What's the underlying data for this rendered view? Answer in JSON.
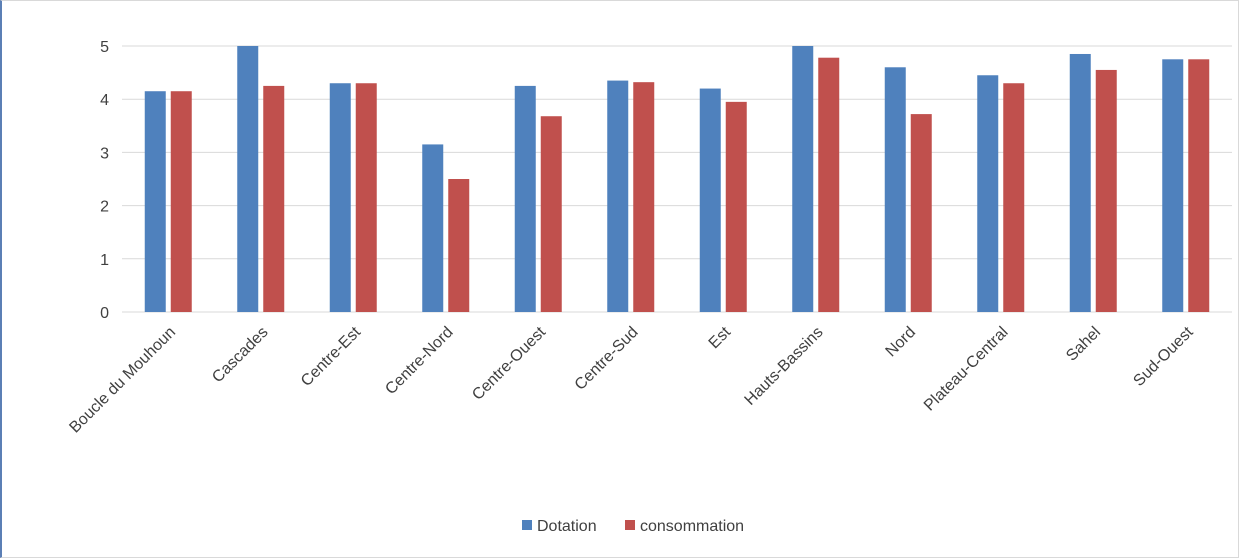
{
  "chart_data": {
    "type": "bar",
    "categories": [
      "Boucle du Mouhoun",
      "Cascades",
      "Centre-Est",
      "Centre-Nord",
      "Centre-Ouest",
      "Centre-Sud",
      "Est",
      "Hauts-Bassins",
      "Nord",
      "Plateau-Central",
      "Sahel",
      "Sud-Ouest"
    ],
    "series": [
      {
        "name": "Dotation",
        "color": "#4f81bd",
        "values": [
          4.15,
          5.0,
          4.3,
          3.15,
          4.25,
          4.35,
          4.2,
          5.0,
          4.6,
          4.45,
          4.85,
          4.75
        ]
      },
      {
        "name": "consommation",
        "color": "#c0504d",
        "values": [
          4.15,
          4.25,
          4.3,
          2.5,
          3.68,
          4.32,
          3.95,
          4.78,
          3.72,
          4.3,
          4.55,
          4.75
        ]
      }
    ],
    "ylim": [
      0,
      5
    ],
    "yticks": [
      0,
      1,
      2,
      3,
      4,
      5
    ],
    "grid": true,
    "legend": "bottom-center"
  }
}
